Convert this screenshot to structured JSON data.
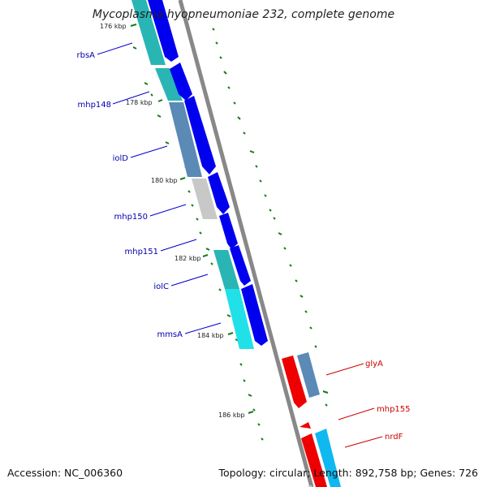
{
  "title": "Mycoplasma hyopneumoniae 232, complete genome",
  "footer": {
    "accession": "Accession: NC_006360",
    "summary": "Topology: circular; Length: 892,758 bp; Genes: 726"
  },
  "colors": {
    "forward_cds": "#0000ee",
    "reverse_cds": "#ee0000",
    "gene_label_forward": "#0000aa",
    "gene_label_reverse": "#cc0000",
    "backbone": "#888888",
    "gc_skew": "#1a7a1a",
    "cog_teal": "#2ab5b5",
    "cog_steelblue": "#5a8ab5",
    "cog_grey": "#c8c8c8",
    "cog_cyan": "#20e0e8",
    "cog_skyblue": "#10b8f0"
  },
  "tick_labels": [
    "176 kbp",
    "178 kbp",
    "180 kbp",
    "182 kbp",
    "184 kbp",
    "186 kbp"
  ],
  "gene_labels_forward": [
    "rbsA",
    "mhp148",
    "iolD",
    "mhp150",
    "mhp151",
    "iolC",
    "mmsA"
  ],
  "gene_labels_reverse": [
    "glyA",
    "mhp155",
    "nrdF"
  ]
}
